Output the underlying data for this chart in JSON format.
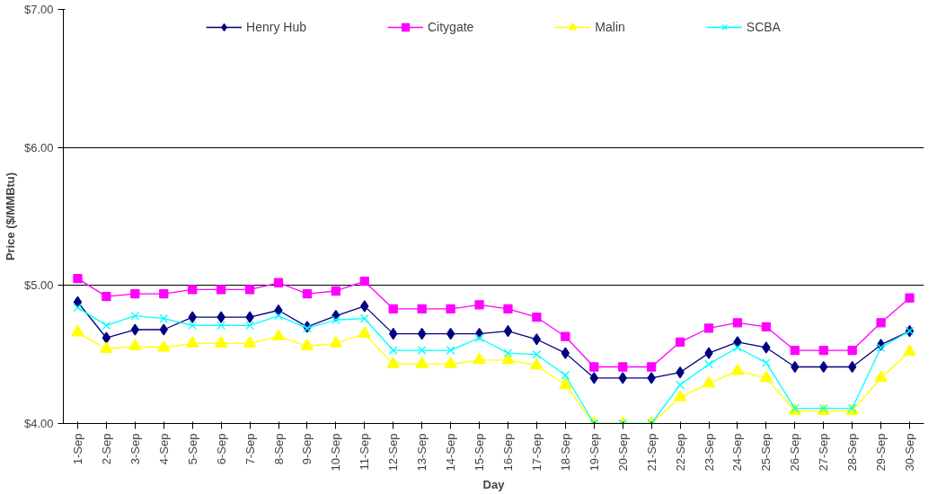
{
  "chart_data": {
    "type": "line",
    "xlabel": "Day",
    "ylabel": "Price ($/MMBtu)",
    "categories": [
      "1-Sep",
      "2-Sep",
      "3-Sep",
      "4-Sep",
      "5-Sep",
      "6-Sep",
      "7-Sep",
      "8-Sep",
      "9-Sep",
      "10-Sep",
      "11-Sep",
      "12-Sep",
      "13-Sep",
      "14-Sep",
      "15-Sep",
      "16-Sep",
      "17-Sep",
      "18-Sep",
      "19-Sep",
      "20-Sep",
      "21-Sep",
      "22-Sep",
      "23-Sep",
      "24-Sep",
      "25-Sep",
      "26-Sep",
      "27-Sep",
      "28-Sep",
      "29-Sep",
      "30-Sep"
    ],
    "series": [
      {
        "name": "Henry Hub",
        "color": "#000080",
        "marker": "diamond",
        "values": [
          4.88,
          4.62,
          4.68,
          4.68,
          4.77,
          4.77,
          4.77,
          4.82,
          4.7,
          4.78,
          4.85,
          4.65,
          4.65,
          4.65,
          4.65,
          4.67,
          4.61,
          4.51,
          4.33,
          4.33,
          4.33,
          4.37,
          4.51,
          4.59,
          4.55,
          4.41,
          4.41,
          4.41,
          4.57,
          4.67
        ]
      },
      {
        "name": "Citygate",
        "color": "#ff00ff",
        "marker": "square",
        "values": [
          5.05,
          4.92,
          4.94,
          4.94,
          4.97,
          4.97,
          4.97,
          5.02,
          4.94,
          4.96,
          5.03,
          4.83,
          4.83,
          4.83,
          4.86,
          4.83,
          4.77,
          4.63,
          4.41,
          4.41,
          4.41,
          4.59,
          4.69,
          4.73,
          4.7,
          4.53,
          4.53,
          4.53,
          4.73,
          4.91
        ]
      },
      {
        "name": "Malin",
        "color": "#ffff00",
        "marker": "triangle",
        "values": [
          4.66,
          4.54,
          4.56,
          4.55,
          4.58,
          4.58,
          4.58,
          4.63,
          4.56,
          4.58,
          4.65,
          4.43,
          4.43,
          4.43,
          4.46,
          4.46,
          4.42,
          4.28,
          4.0,
          4.0,
          4.0,
          4.19,
          4.29,
          4.38,
          4.33,
          4.09,
          4.09,
          4.09,
          4.33,
          4.52
        ]
      },
      {
        "name": "SCBA",
        "color": "#00ffff",
        "marker": "cross",
        "values": [
          4.84,
          4.71,
          4.78,
          4.76,
          4.71,
          4.71,
          4.71,
          4.78,
          4.69,
          4.75,
          4.76,
          4.53,
          4.53,
          4.53,
          4.62,
          4.51,
          4.5,
          4.35,
          4.0,
          4.0,
          4.0,
          4.28,
          4.43,
          4.55,
          4.44,
          4.11,
          4.11,
          4.11,
          4.55,
          4.67
        ]
      }
    ],
    "ylim": [
      4,
      7
    ],
    "yticks": [
      {
        "value": 4,
        "label": "$4.00"
      },
      {
        "value": 5,
        "label": "$5.00"
      },
      {
        "value": 6,
        "label": "$6.00"
      },
      {
        "value": 7,
        "label": "$7.00"
      }
    ],
    "grid": "y",
    "legend": "top",
    "line_style": "solid"
  }
}
